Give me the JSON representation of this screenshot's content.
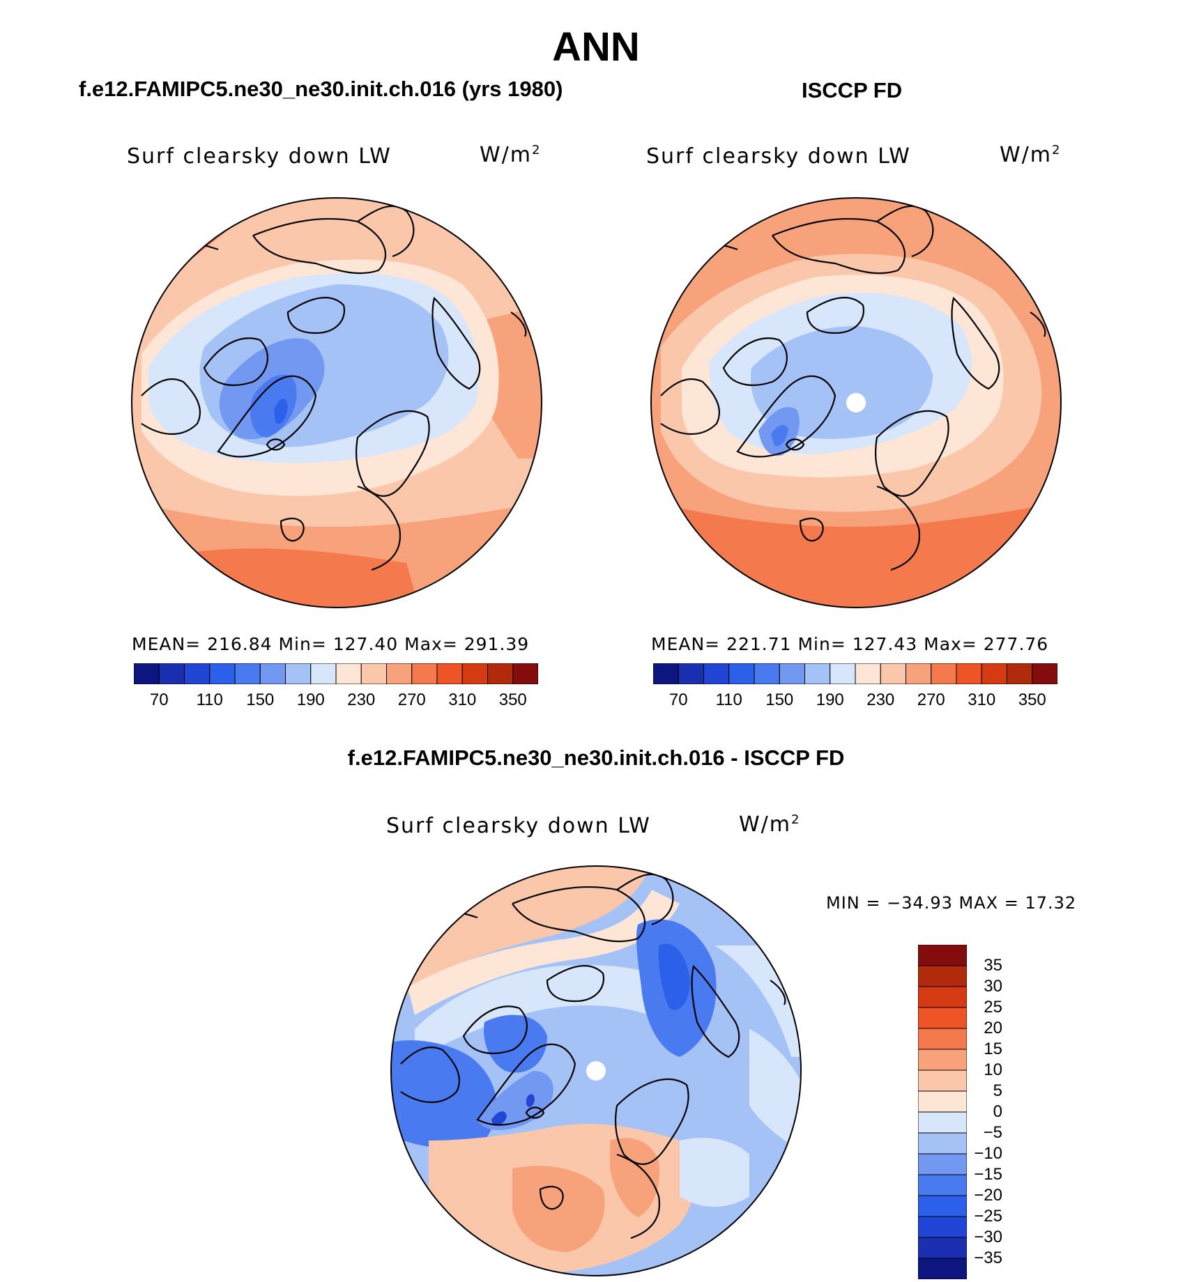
{
  "season_title": "ANN",
  "model_title": "f.e12.FAMIPC5.ne30_ne30.init.ch.016 (yrs 1980)",
  "obs_title": "ISCCP FD",
  "diff_title": "f.e12.FAMIPC5.ne30_ne30.init.ch.016 - ISCCP FD",
  "panels": {
    "model": {
      "variable": "Surf clearsky down LW",
      "units_base": "W/m",
      "units_exp": "2",
      "stats": "MEAN= 216.84   Min= 127.40   Max= 291.39"
    },
    "obs": {
      "variable": "Surf clearsky down LW",
      "units_base": "W/m",
      "units_exp": "2",
      "stats": "MEAN= 221.71   Min= 127.43   Max= 277.76"
    },
    "diff": {
      "variable": "Surf clearsky down LW",
      "units_base": "W/m",
      "units_exp": "2",
      "stats": "MIN = −34.93 MAX =   17.32"
    }
  },
  "colorbar_main": {
    "colors": [
      "#0d1580",
      "#1a2fb0",
      "#2146d6",
      "#2d60ea",
      "#4a7af0",
      "#7298f2",
      "#a5c2f7",
      "#d7e6fb",
      "#fde6d6",
      "#fbc7ab",
      "#f8a27c",
      "#f47a4e",
      "#ef5426",
      "#d63a12",
      "#b22a0c",
      "#850c0c"
    ],
    "labels": [
      "70",
      "110",
      "150",
      "190",
      "230",
      "270",
      "310",
      "350"
    ]
  },
  "colorbar_diff": {
    "colors": [
      "#850c0c",
      "#b22a0c",
      "#d63a12",
      "#ef5426",
      "#f47a4e",
      "#f8a27c",
      "#fbc7ab",
      "#fde6d6",
      "#d7e6fb",
      "#a5c2f7",
      "#7298f2",
      "#4a7af0",
      "#2d60ea",
      "#2146d6",
      "#1a2fb0",
      "#0d1580"
    ],
    "labels": [
      "35",
      "30",
      "25",
      "20",
      "15",
      "10",
      "5",
      "0",
      "−5",
      "−10",
      "−15",
      "−20",
      "−25",
      "−30",
      "−35"
    ]
  }
}
